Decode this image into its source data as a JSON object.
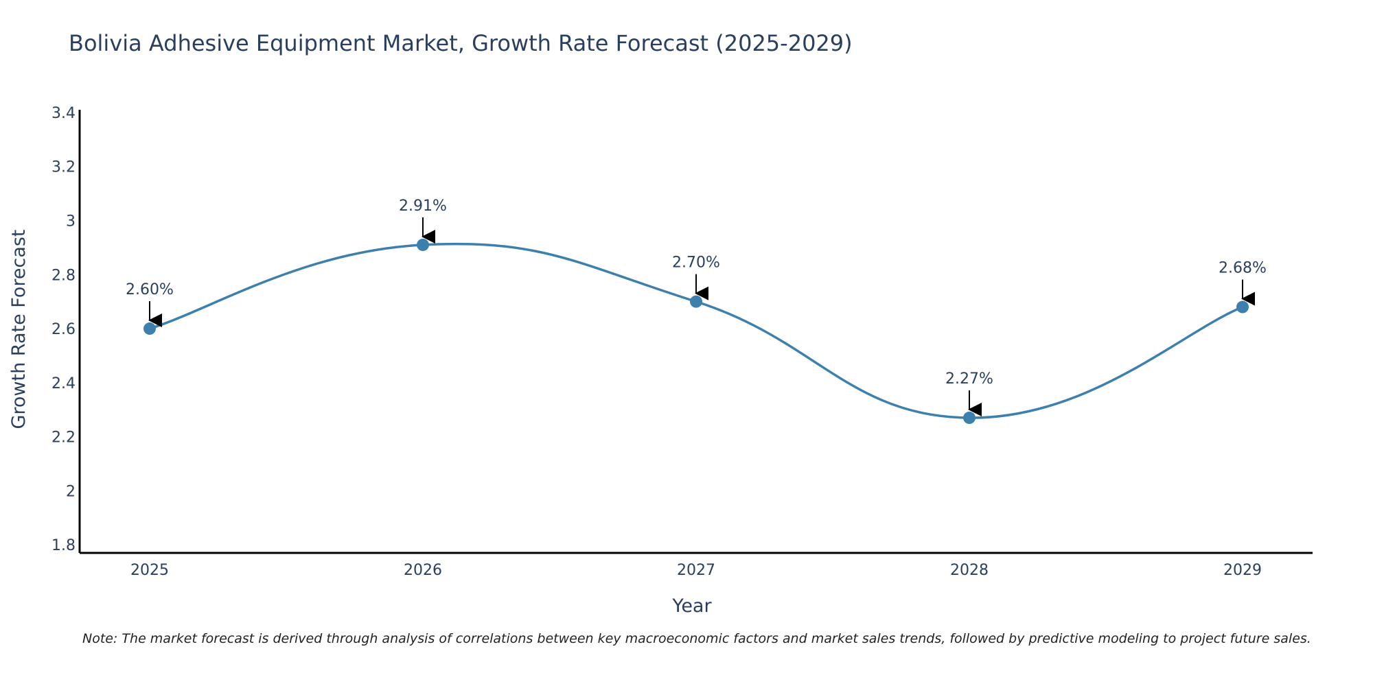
{
  "chart_data": {
    "type": "line",
    "title": "Bolivia Adhesive Equipment Market, Growth Rate Forecast (2025-2029)",
    "xlabel": "Year",
    "ylabel": "Growth Rate Forecast",
    "categories": [
      "2025",
      "2026",
      "2027",
      "2028",
      "2029"
    ],
    "values": [
      2.6,
      2.91,
      2.7,
      2.27,
      2.68
    ],
    "data_labels": [
      "2.60%",
      "2.91%",
      "2.70%",
      "2.27%",
      "2.68%"
    ],
    "ylim": [
      1.77,
      3.41
    ],
    "yticks": [
      1.8,
      2,
      2.2,
      2.4,
      2.6,
      2.8,
      3,
      3.2,
      3.4
    ],
    "ytick_labels": [
      "1.8",
      "2",
      "2.2",
      "2.4",
      "2.6",
      "2.8",
      "3",
      "3.2",
      "3.4"
    ],
    "grid": false,
    "line_shape": "spline",
    "colors": {
      "line": "#3d7fad",
      "marker": "#3d7fad",
      "arrow": "#000000",
      "axis": "#000000",
      "text": "#2a3f5f"
    }
  },
  "note": "Note: The market forecast is derived through analysis of correlations between key macroeconomic factors and market sales trends, followed by predictive modeling to project future sales."
}
